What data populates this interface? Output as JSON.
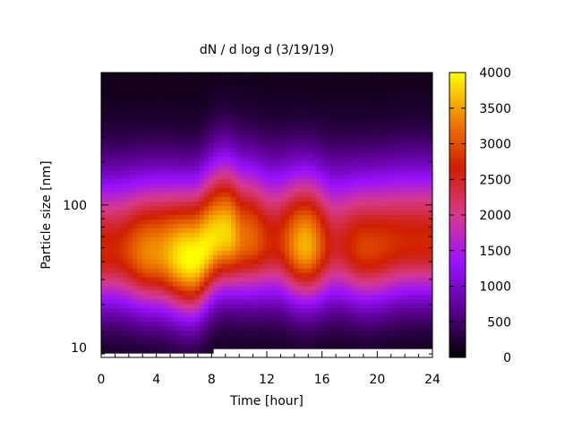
{
  "chart_data": {
    "type": "heatmap",
    "title": "dN / d log d (3/19/19)",
    "xlabel": "Time [hour]",
    "ylabel": "Particle size [nm]",
    "xlim": [
      0,
      24
    ],
    "ylim": [
      8.5,
      850
    ],
    "yscale": "log",
    "x_ticks": [
      "0",
      "4",
      "8",
      "12",
      "16",
      "20",
      "24"
    ],
    "x_tick_values": [
      0,
      4,
      8,
      12,
      16,
      20,
      24
    ],
    "y_ticks": [
      "10",
      "100"
    ],
    "y_tick_values": [
      10,
      100
    ],
    "colorbar": {
      "range": [
        0,
        4000
      ],
      "ticks": [
        "0",
        "500",
        "1000",
        "1500",
        "2000",
        "2500",
        "3000",
        "3500",
        "4000"
      ],
      "tick_values": [
        0,
        500,
        1000,
        1500,
        2000,
        2500,
        3000,
        3500,
        4000
      ],
      "palette": [
        "#000000",
        "#5a0090",
        "#9a11ff",
        "#d63a8c",
        "#d01e00",
        "#ef7f00",
        "#ffff00"
      ]
    },
    "mode_peaks": [
      {
        "t": 0.8,
        "d_nm": 48,
        "value": 2600
      },
      {
        "t": 3.8,
        "d_nm": 46,
        "value": 3300
      },
      {
        "t": 6.5,
        "d_nm": 42,
        "value": 3900
      },
      {
        "t": 9.0,
        "d_nm": 62,
        "value": 3700
      },
      {
        "t": 10.5,
        "d_nm": 58,
        "value": 3100
      },
      {
        "t": 12.5,
        "d_nm": 55,
        "value": 2600
      },
      {
        "t": 14.8,
        "d_nm": 52,
        "value": 3500
      },
      {
        "t": 17.0,
        "d_nm": 52,
        "value": 2400
      },
      {
        "t": 19.2,
        "d_nm": 50,
        "value": 2800
      },
      {
        "t": 22.5,
        "d_nm": 55,
        "value": 2600
      }
    ]
  }
}
